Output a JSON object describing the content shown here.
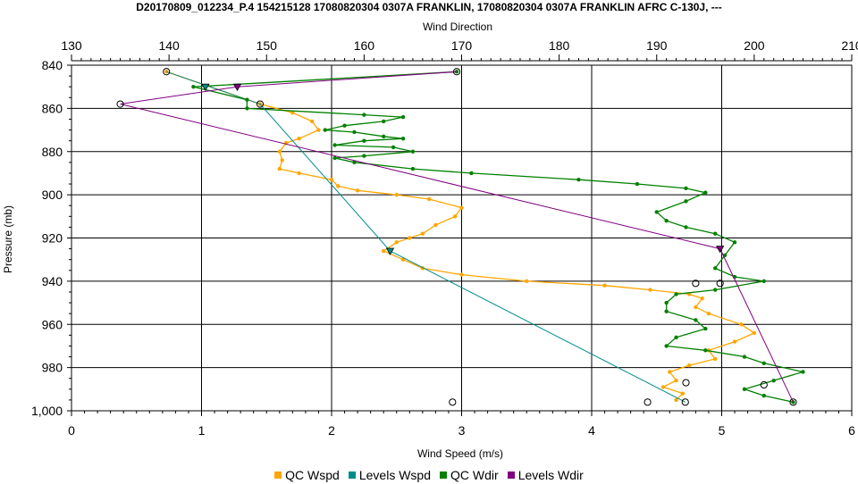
{
  "chart_data": {
    "type": "line",
    "title": "D20170809_012234_P.4 154215128 17080820304 0307A FRANKLIN, 17080820304 0307A FRANKLIN AFRC C-130J, ---",
    "xlabel_bottom": "Wind Speed (m/s)",
    "xlabel_top": "Wind Direction",
    "ylabel": "Pressure (mb)",
    "xlim_bottom": [
      0,
      6
    ],
    "xlim_top": [
      130,
      210
    ],
    "ylim": [
      840,
      1000
    ],
    "y_inverted": true,
    "grid": true,
    "legend_position": "bottom",
    "bottom_ticks": [
      "0",
      "1",
      "2",
      "3",
      "4",
      "5",
      "6"
    ],
    "top_ticks": [
      "130",
      "140",
      "150",
      "160",
      "170",
      "180",
      "190",
      "200",
      "210"
    ],
    "y_ticks": [
      "840",
      "860",
      "880",
      "900",
      "920",
      "940",
      "960",
      "980",
      "1,000"
    ],
    "series": [
      {
        "name": "QC Wspd",
        "axis": "bottom",
        "color": "#FFA500",
        "marker": "dot",
        "points": [
          [
            0.73,
            843
          ],
          [
            1.45,
            858
          ],
          [
            1.7,
            862
          ],
          [
            1.85,
            866
          ],
          [
            1.9,
            870
          ],
          [
            1.75,
            874
          ],
          [
            1.65,
            876
          ],
          [
            1.6,
            880
          ],
          [
            1.62,
            884
          ],
          [
            1.6,
            888
          ],
          [
            1.75,
            890
          ],
          [
            2.0,
            893
          ],
          [
            2.05,
            896
          ],
          [
            2.2,
            898
          ],
          [
            2.5,
            900
          ],
          [
            2.75,
            902
          ],
          [
            3.0,
            906
          ],
          [
            2.95,
            910
          ],
          [
            2.8,
            914
          ],
          [
            2.7,
            918
          ],
          [
            2.6,
            920
          ],
          [
            2.5,
            922
          ],
          [
            2.4,
            926
          ],
          [
            2.55,
            930
          ],
          [
            2.7,
            934
          ],
          [
            3.0,
            937
          ],
          [
            3.5,
            940
          ],
          [
            4.1,
            942
          ],
          [
            4.45,
            944
          ],
          [
            4.75,
            946
          ],
          [
            4.85,
            948
          ],
          [
            4.8,
            952
          ],
          [
            4.9,
            955
          ],
          [
            5.15,
            960
          ],
          [
            5.25,
            964
          ],
          [
            5.1,
            968
          ],
          [
            4.9,
            972
          ],
          [
            4.95,
            976
          ],
          [
            4.75,
            979
          ],
          [
            4.6,
            982
          ],
          [
            4.65,
            986
          ],
          [
            4.55,
            989
          ],
          [
            4.7,
            992
          ],
          [
            4.65,
            995
          ]
        ]
      },
      {
        "name": "Levels Wspd",
        "axis": "bottom",
        "color": "#008B8B",
        "marker": "circle",
        "points": [
          [
            0.73,
            843
          ],
          [
            1.45,
            858
          ],
          [
            2.45,
            926
          ],
          [
            4.72,
            996
          ]
        ]
      },
      {
        "name": "QC Wdir",
        "axis": "top",
        "color": "#008000",
        "marker": "dot",
        "points": [
          [
            169.5,
            843
          ],
          [
            142.5,
            850
          ],
          [
            148,
            856
          ],
          [
            148,
            860
          ],
          [
            160,
            863
          ],
          [
            164,
            864
          ],
          [
            162,
            866
          ],
          [
            158,
            868
          ],
          [
            156,
            870
          ],
          [
            159,
            871
          ],
          [
            162,
            873
          ],
          [
            164,
            874
          ],
          [
            160,
            875
          ],
          [
            157,
            877
          ],
          [
            163,
            878
          ],
          [
            165,
            880
          ],
          [
            160,
            882
          ],
          [
            157,
            883
          ],
          [
            159,
            885
          ],
          [
            165,
            888
          ],
          [
            171,
            890
          ],
          [
            182,
            893
          ],
          [
            188,
            895
          ],
          [
            193,
            897
          ],
          [
            195,
            899
          ],
          [
            193,
            903
          ],
          [
            190,
            908
          ],
          [
            191,
            912
          ],
          [
            193,
            915
          ],
          [
            196,
            918
          ],
          [
            198,
            922
          ],
          [
            197,
            928
          ],
          [
            196,
            934
          ],
          [
            198,
            938
          ],
          [
            201,
            940
          ],
          [
            196,
            944
          ],
          [
            192,
            946
          ],
          [
            191,
            950
          ],
          [
            191,
            954
          ],
          [
            194,
            958
          ],
          [
            195,
            962
          ],
          [
            192,
            966
          ],
          [
            191,
            970
          ],
          [
            195,
            972
          ],
          [
            199,
            975
          ],
          [
            201,
            978
          ],
          [
            205,
            982
          ],
          [
            202,
            986
          ],
          [
            199,
            990
          ],
          [
            201,
            993
          ],
          [
            204,
            996
          ]
        ]
      },
      {
        "name": "Levels Wdir",
        "axis": "top",
        "color": "#800080",
        "marker": "circle",
        "points": [
          [
            169.5,
            843
          ],
          [
            147,
            850
          ],
          [
            135,
            858
          ],
          [
            196.5,
            925
          ],
          [
            204,
            996
          ]
        ]
      }
    ],
    "hollow_markers": [
      {
        "axis": "top",
        "x": 169.5,
        "y": 843
      },
      {
        "axis": "top",
        "x": 135,
        "y": 858
      },
      {
        "axis": "top",
        "x": 194,
        "y": 941
      },
      {
        "axis": "top",
        "x": 196.5,
        "y": 941
      },
      {
        "axis": "top",
        "x": 193,
        "y": 987
      },
      {
        "axis": "top",
        "x": 201,
        "y": 988
      },
      {
        "axis": "top",
        "x": 204,
        "y": 996
      },
      {
        "axis": "bottom",
        "x": 0.73,
        "y": 843
      },
      {
        "axis": "bottom",
        "x": 1.45,
        "y": 858
      },
      {
        "axis": "bottom",
        "x": 2.93,
        "y": 996
      },
      {
        "axis": "bottom",
        "x": 4.43,
        "y": 996
      },
      {
        "axis": "bottom",
        "x": 4.72,
        "y": 996
      }
    ],
    "triangle_markers": [
      {
        "axis": "bottom",
        "x": 1.03,
        "y": 850,
        "color": "#008B8B"
      },
      {
        "axis": "top",
        "x": 147,
        "y": 850,
        "color": "#800080"
      },
      {
        "axis": "bottom",
        "x": 2.45,
        "y": 926,
        "color": "#008B8B"
      },
      {
        "axis": "top",
        "x": 196.5,
        "y": 925,
        "color": "#800080"
      }
    ]
  }
}
